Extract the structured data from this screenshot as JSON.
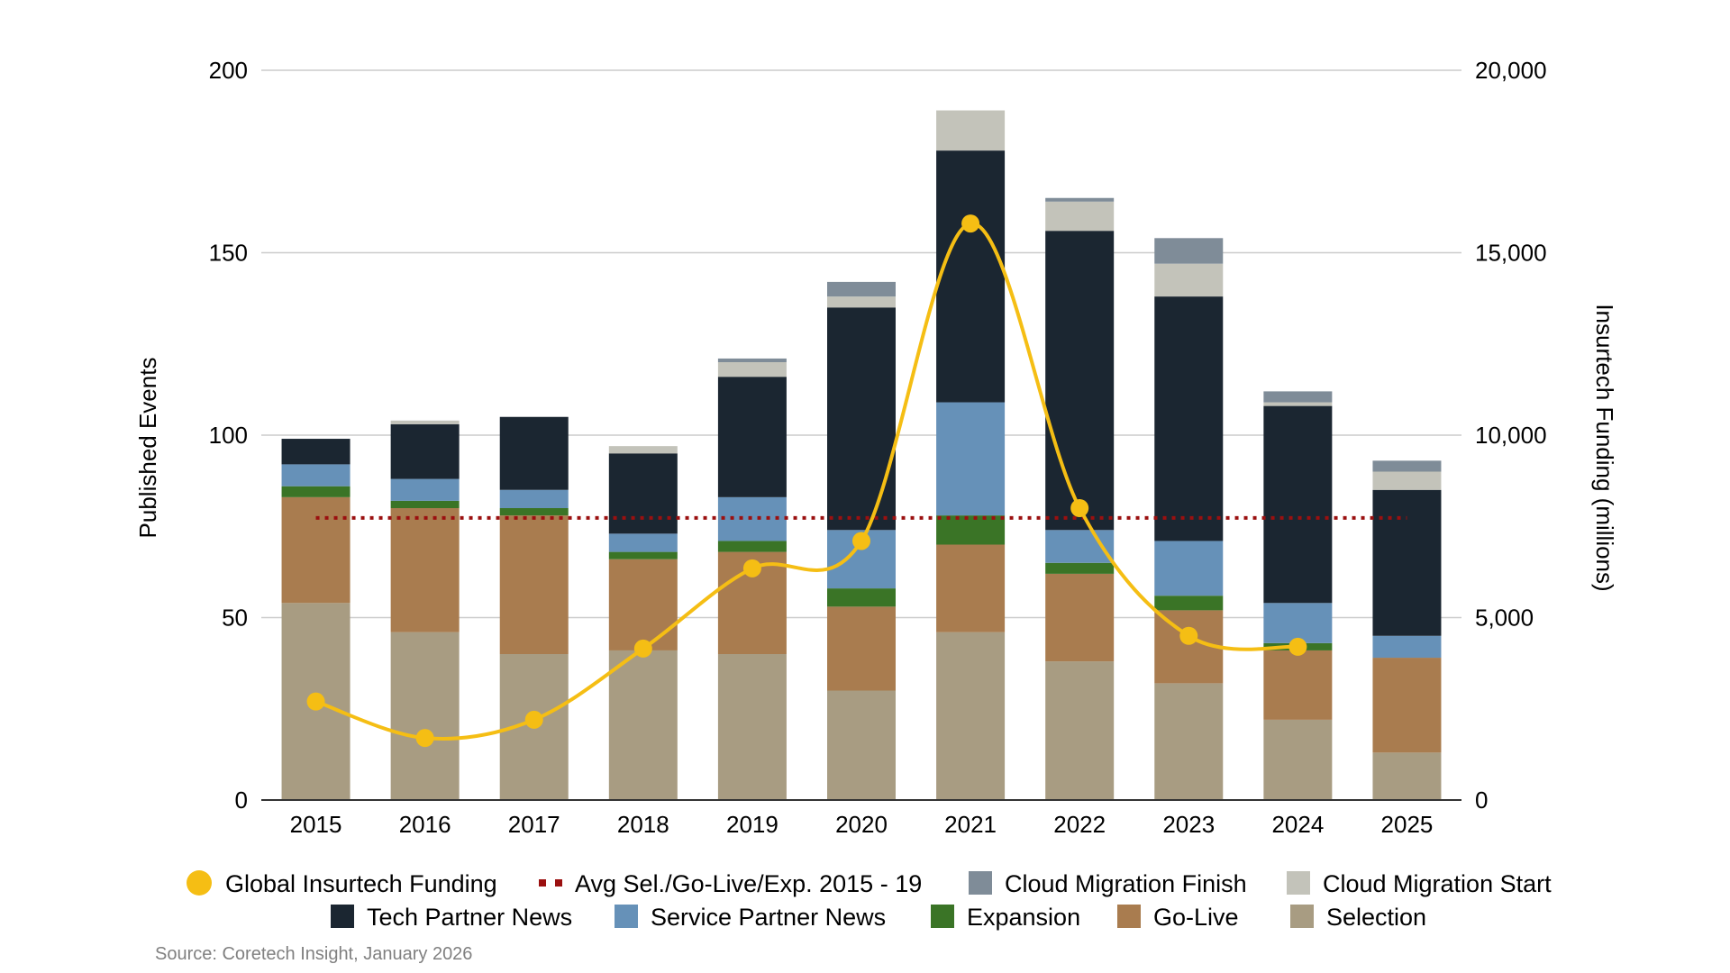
{
  "chart_data": {
    "type": "bar",
    "stacked": true,
    "categories": [
      "2015",
      "2016",
      "2017",
      "2018",
      "2019",
      "2020",
      "2021",
      "2022",
      "2023",
      "2024",
      "2025"
    ],
    "ylabel": "Published Events",
    "y2label": "Insurtech Funding (millions)",
    "ylim": [
      0,
      200
    ],
    "y2lim": [
      0,
      20000
    ],
    "yticks": [
      "0",
      "50",
      "100",
      "150",
      "200"
    ],
    "y2ticks": [
      "0",
      "5,000",
      "10,000",
      "15,000",
      "20,000"
    ],
    "grid": true,
    "series": [
      {
        "name": "Selection",
        "color": "#A89C82",
        "values": [
          54,
          46,
          40,
          41,
          40,
          30,
          46,
          38,
          32,
          22,
          13
        ]
      },
      {
        "name": "Go-Live",
        "color": "#A97C4F",
        "values": [
          29,
          34,
          38,
          25,
          28,
          23,
          24,
          24,
          20,
          19,
          26
        ]
      },
      {
        "name": "Expansion",
        "color": "#3A7426",
        "values": [
          3,
          2,
          2,
          2,
          3,
          5,
          8,
          3,
          4,
          2,
          0
        ]
      },
      {
        "name": "Service Partner News",
        "color": "#6691B8",
        "values": [
          6,
          6,
          5,
          5,
          12,
          16,
          31,
          9,
          15,
          11,
          6
        ]
      },
      {
        "name": "Tech Partner News",
        "color": "#1B2631",
        "values": [
          7,
          15,
          20,
          22,
          33,
          61,
          69,
          82,
          67,
          54,
          40
        ]
      },
      {
        "name": "Cloud Migration Start",
        "color": "#C3C3BA",
        "values": [
          0,
          1,
          0,
          2,
          4,
          3,
          11,
          8,
          9,
          1,
          5
        ]
      },
      {
        "name": "Cloud Migration Finish",
        "color": "#7F8C98",
        "values": [
          0,
          0,
          0,
          0,
          1,
          4,
          0,
          1,
          7,
          3,
          3
        ]
      }
    ],
    "line": {
      "name": "Global Insurtech Funding",
      "color": "#F5BE14",
      "axis": "right",
      "values": [
        2700,
        1700,
        2200,
        4150,
        6350,
        7100,
        15800,
        8000,
        4500,
        4200,
        null
      ]
    },
    "reference_line": {
      "name": "Avg Sel./Go-Live/Exp. 2015 - 19",
      "color": "#9B1010",
      "value": 77.3,
      "style": "dotted"
    },
    "legend": {
      "placement": "bottom",
      "row1": [
        {
          "name": "Global Insurtech Funding",
          "marker": "circle",
          "color": "#F5BE14"
        },
        {
          "name": "Avg Sel./Go-Live/Exp. 2015 - 19",
          "marker": "dots",
          "color": "#9B1010"
        },
        {
          "name": "Cloud Migration Finish",
          "marker": "square",
          "color": "#7F8C98"
        },
        {
          "name": "Cloud Migration Start",
          "marker": "square",
          "color": "#C3C3BA"
        }
      ],
      "row2": [
        {
          "name": "Tech Partner News",
          "marker": "square",
          "color": "#1B2631"
        },
        {
          "name": "Service Partner News",
          "marker": "square",
          "color": "#6691B8"
        },
        {
          "name": "Expansion",
          "marker": "square",
          "color": "#3A7426"
        },
        {
          "name": "Go-Live",
          "marker": "square",
          "color": "#A97C4F"
        },
        {
          "name": "Selection",
          "marker": "square",
          "color": "#A89C82"
        }
      ]
    },
    "source": "Source: Coretech Insight, January 2026"
  }
}
